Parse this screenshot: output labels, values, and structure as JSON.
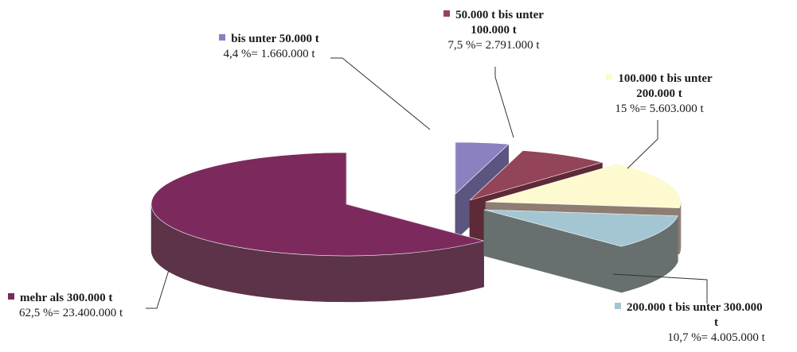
{
  "chart_data": {
    "type": "pie",
    "slices": [
      {
        "name": "bis unter 50.000 t",
        "percent": 4.4,
        "value_label": "1.660.000 t",
        "value": 1660000,
        "color": "#8B80C0",
        "side": "#5C557F"
      },
      {
        "name": "50.000 t bis unter 100.000 t",
        "percent": 7.5,
        "value_label": "2.791.000 t",
        "value": 2791000,
        "color": "#944458",
        "side": "#5E2A37"
      },
      {
        "name": "100.000 t bis unter 200.000 t",
        "percent": 15,
        "value_label": "5.603.000 t",
        "value": 5603000,
        "color": "#FDFAD0",
        "side": "#8E7D72"
      },
      {
        "name": "200.000 t bis unter 300.000 t",
        "percent": 10.7,
        "value_label": "4.005.000 t",
        "value": 4005000,
        "color": "#A3C6D2",
        "side": "#67706E"
      },
      {
        "name": "mehr als 300.000 t",
        "percent": 62.5,
        "value_label": "23.400.000 t",
        "value": 23400000,
        "color": "#7C2A5E",
        "side": "#5C3349"
      }
    ]
  },
  "labels": [
    {
      "name_lines": [
        "bis unter 50.000 t"
      ],
      "value_text": "4,4 %= 1.660.000 t"
    },
    {
      "name_lines": [
        "50.000 t bis unter",
        "100.000 t"
      ],
      "value_text": "7,5 %= 2.791.000 t"
    },
    {
      "name_lines": [
        "100.000 t bis unter",
        "200.000 t"
      ],
      "value_text": "15 %= 5.603.000 t"
    },
    {
      "name_lines": [
        "200.000 t bis unter 300.000",
        "t"
      ],
      "value_text": "10,7 %= 4.005.000 t"
    },
    {
      "name_lines": [
        "mehr als 300.000 t"
      ],
      "value_text": "62,5 %= 23.400.000 t"
    }
  ]
}
